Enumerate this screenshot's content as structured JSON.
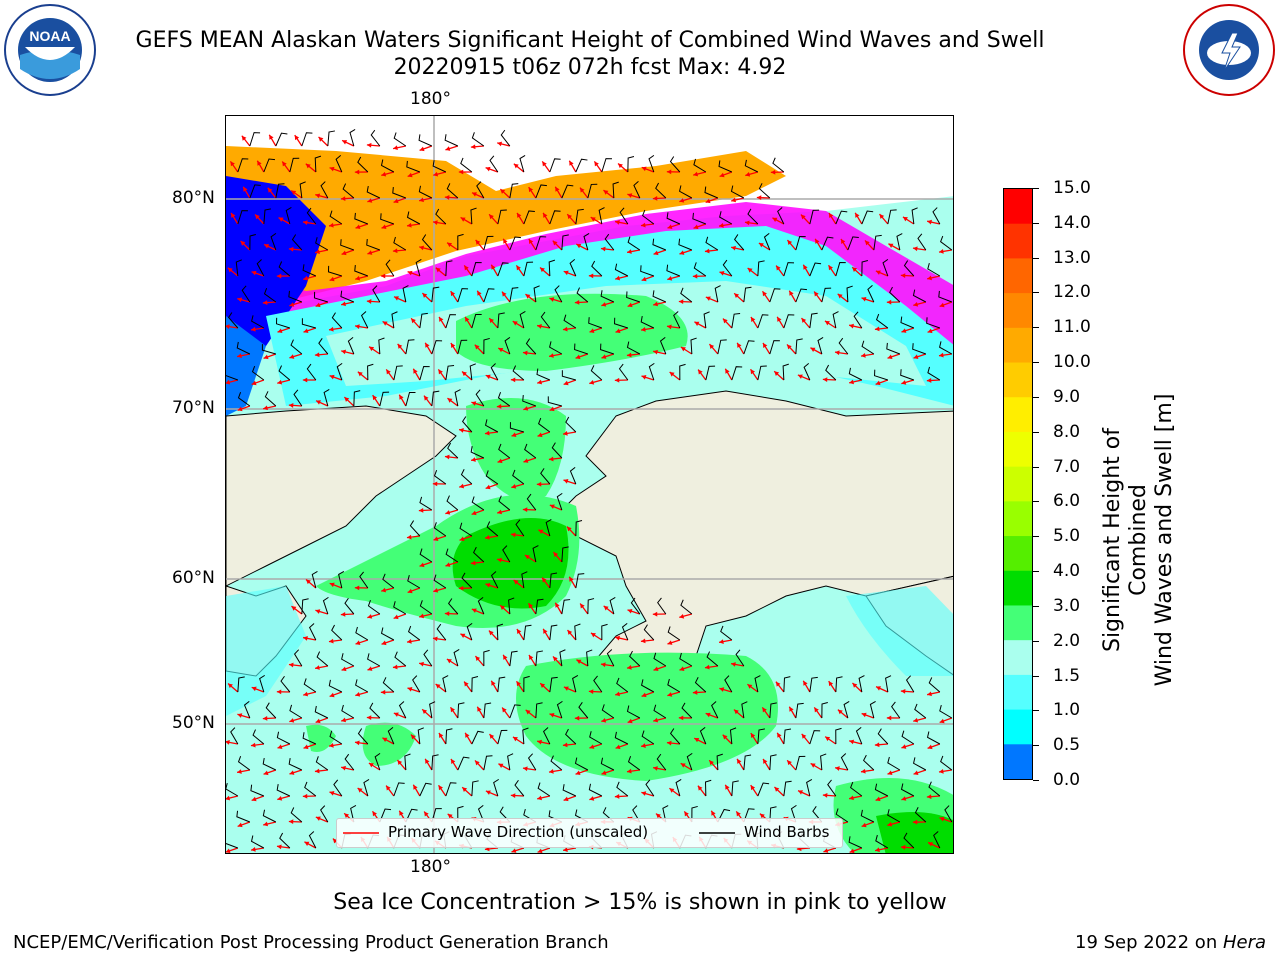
{
  "title_line1": "GEFS MEAN Alaskan Waters Significant Height of Combined Wind Waves and Swell",
  "title_line2": "20220915 t06z 072h fcst   Max: 4.92",
  "logos": {
    "left": "noaa-logo",
    "right": "nws-logo"
  },
  "map": {
    "lon_label_top": "180°",
    "lon_label_bottom": "180°",
    "lat_labels": [
      "80°N",
      "70°N",
      "60°N",
      "50°N"
    ],
    "legend": {
      "wave_label": "Primary Wave Direction (unscaled)",
      "wave_color": "#ff0000",
      "barb_label": "Wind Barbs",
      "barb_color": "#000000"
    }
  },
  "colorbar": {
    "title_line1": "Significant Height of Combined",
    "title_line2": "Wind Waves and Swell [m]",
    "ticks": [
      "15.0",
      "14.0",
      "13.0",
      "12.0",
      "11.0",
      "10.0",
      "9.0",
      "8.0",
      "7.0",
      "6.0",
      "5.0",
      "4.0",
      "3.0",
      "2.0",
      "1.5",
      "1.0",
      "0.5",
      "0.0"
    ],
    "colors_top_to_bottom": [
      "#ff0000",
      "#ff3300",
      "#ff6600",
      "#ff8800",
      "#ffaa00",
      "#ffcc00",
      "#ffee00",
      "#eeff00",
      "#ccff00",
      "#99ff00",
      "#55ee00",
      "#00dd00",
      "#44ff77",
      "#aaffee",
      "#55ffff",
      "#00ffff",
      "#0077ff",
      "#0000ff"
    ]
  },
  "land_color": "#efefdf",
  "ice_colors": [
    "#ff00ff",
    "#ffaa00",
    "#ffff00"
  ],
  "note": "Sea Ice Concentration > 15% is shown in pink to yellow",
  "footer_left": "NCEP/EMC/Verification Post Processing Product Generation Branch",
  "footer_right_date": "19 Sep 2022 on ",
  "footer_right_host": "Hera"
}
